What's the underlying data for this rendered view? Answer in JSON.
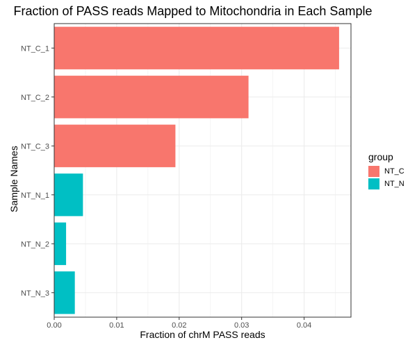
{
  "chart_data": {
    "type": "bar",
    "orientation": "horizontal",
    "title": "Fraction of PASS reads Mapped to Mitochondria in Each Sample",
    "xlabel": "Fraction of chrM PASS reads",
    "ylabel": "Sample Names",
    "xlim": [
      0,
      0.0475
    ],
    "xticks": [
      0.0,
      0.01,
      0.02,
      0.03,
      0.04
    ],
    "xtick_labels": [
      "0.00",
      "0.01",
      "0.02",
      "0.03",
      "0.04"
    ],
    "categories": [
      "NT_C_1",
      "NT_C_2",
      "NT_C_3",
      "NT_N_1",
      "NT_N_2",
      "NT_N_3"
    ],
    "values": [
      0.0456,
      0.0311,
      0.0194,
      0.0046,
      0.0019,
      0.0033
    ],
    "groups": [
      "NT_C",
      "NT_C",
      "NT_C",
      "NT_N",
      "NT_N",
      "NT_N"
    ],
    "grid": true,
    "legend": {
      "title": "group",
      "position": "right",
      "items": [
        {
          "label": "NT_C",
          "color": "#F8766D"
        },
        {
          "label": "NT_N",
          "color": "#00BFC4"
        }
      ]
    }
  }
}
